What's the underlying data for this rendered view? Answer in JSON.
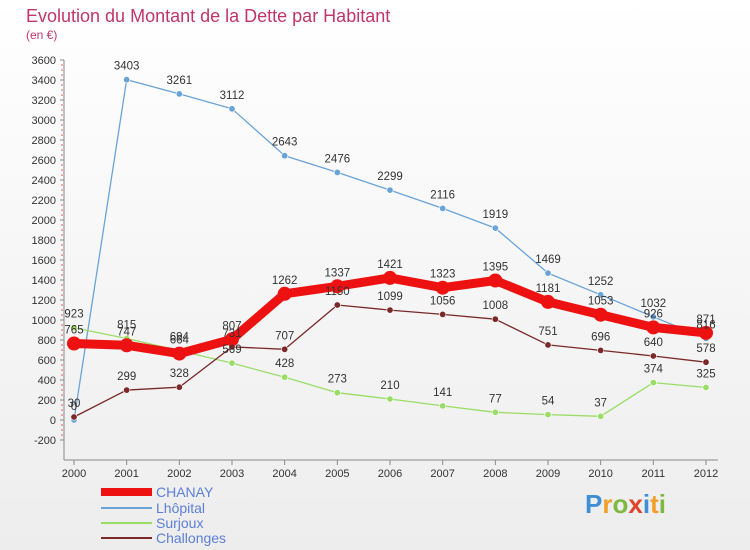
{
  "title": "Evolution du Montant de la Dette par Habitant",
  "subtitle": "(en €)",
  "logo_text": "Proxiti",
  "logo_colors": [
    "#3f8fd6",
    "#f0a02a",
    "#7fb842",
    "#e0452a",
    "#3f8fd6",
    "#f0a02a",
    "#7fb842"
  ],
  "chart_data": {
    "type": "line",
    "x": [
      "2000",
      "2001",
      "2002",
      "2003",
      "2004",
      "2005",
      "2006",
      "2007",
      "2008",
      "2009",
      "2010",
      "2011",
      "2012"
    ],
    "ylim": [
      -200,
      3600
    ],
    "yticks": [
      -200,
      0,
      200,
      400,
      600,
      800,
      1000,
      1200,
      1400,
      1600,
      1800,
      2000,
      2200,
      2400,
      2600,
      2800,
      3000,
      3200,
      3400,
      3600
    ],
    "grid": false,
    "legend_position": "bottom-left",
    "series": [
      {
        "name": "CHANAY",
        "color": "#ee1111",
        "values": [
          765,
          747,
          664,
          807,
          1262,
          1337,
          1421,
          1323,
          1395,
          1181,
          1053,
          926,
          871
        ]
      },
      {
        "name": "Lhôpital",
        "color": "#6aa3d8",
        "values": [
          0,
          3403,
          3261,
          3112,
          2643,
          2476,
          2299,
          2116,
          1919,
          1469,
          1252,
          1032,
          816
        ]
      },
      {
        "name": "Surjoux",
        "color": "#99dd66",
        "values": [
          923,
          815,
          694,
          569,
          428,
          273,
          210,
          141,
          77,
          54,
          37,
          374,
          325
        ]
      },
      {
        "name": "Challonges",
        "color": "#7a2828",
        "values": [
          30,
          299,
          328,
          731,
          707,
          1150,
          1099,
          1056,
          1008,
          751,
          696,
          640,
          578
        ]
      }
    ]
  }
}
